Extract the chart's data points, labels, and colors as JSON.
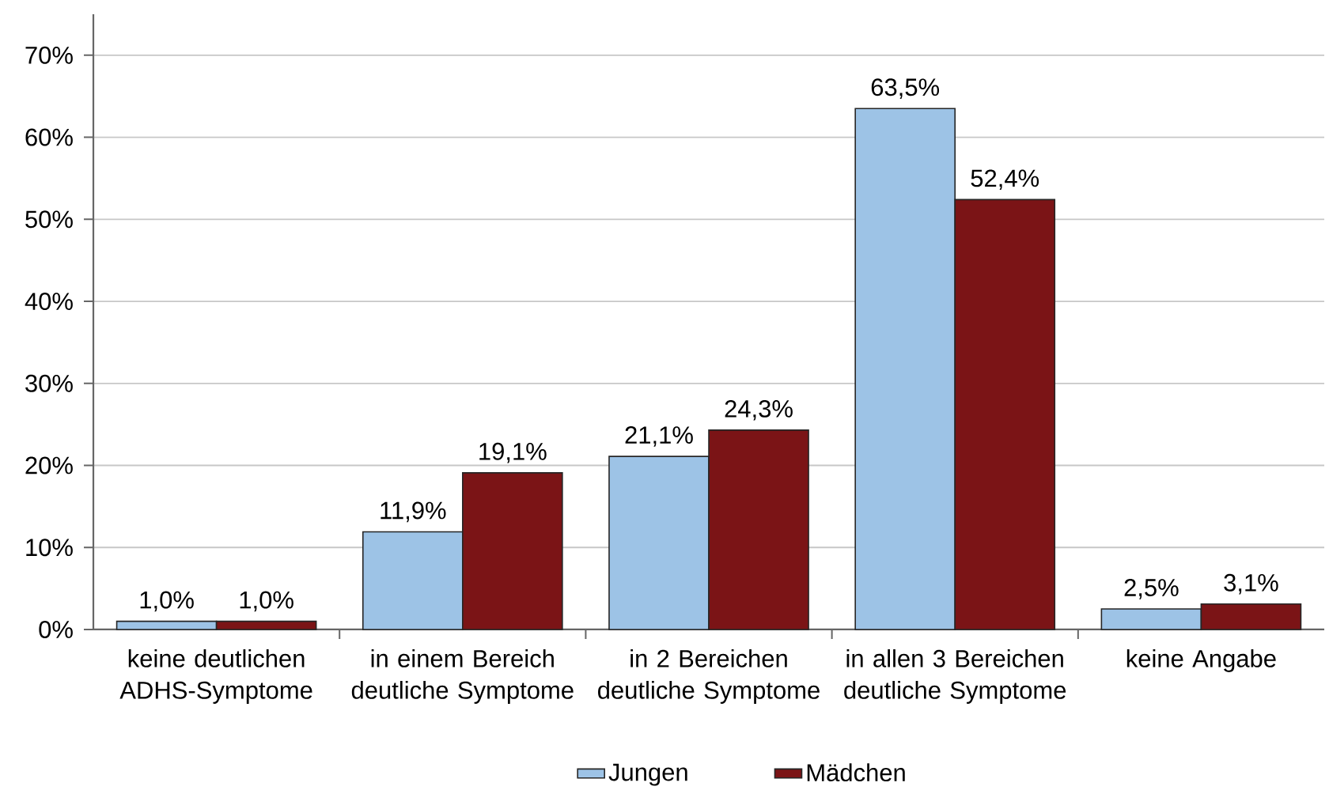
{
  "chart_data": {
    "type": "bar",
    "categories": [
      "keine deutlichen ADHS-Symptome",
      "in einem Bereich deutliche Symptome",
      "in 2 Bereichen deutliche Symptome",
      "in allen 3 Bereichen deutliche Symptome",
      "keine Angabe"
    ],
    "series": [
      {
        "name": "Jungen",
        "color": "#9dc3e6",
        "values": [
          1.0,
          11.9,
          21.1,
          63.5,
          2.5
        ],
        "value_labels": [
          "1,0%",
          "11,9%",
          "21,1%",
          "63,5%",
          "2,5%"
        ]
      },
      {
        "name": "Mädchen",
        "color": "#7b1416",
        "values": [
          1.0,
          19.1,
          24.3,
          52.4,
          3.1
        ],
        "value_labels": [
          "1,0%",
          "19,1%",
          "24,3%",
          "52,4%",
          "3,1%"
        ]
      }
    ],
    "ylim": [
      0,
      75
    ],
    "yticks": [
      {
        "value": 0,
        "label": "0%"
      },
      {
        "value": 10,
        "label": "10%"
      },
      {
        "value": 20,
        "label": "20%"
      },
      {
        "value": 30,
        "label": "30%"
      },
      {
        "value": 40,
        "label": "40%"
      },
      {
        "value": 50,
        "label": "50%"
      },
      {
        "value": 60,
        "label": "60%"
      },
      {
        "value": 70,
        "label": "70%"
      }
    ],
    "grid": "y",
    "legend": "bottom"
  }
}
